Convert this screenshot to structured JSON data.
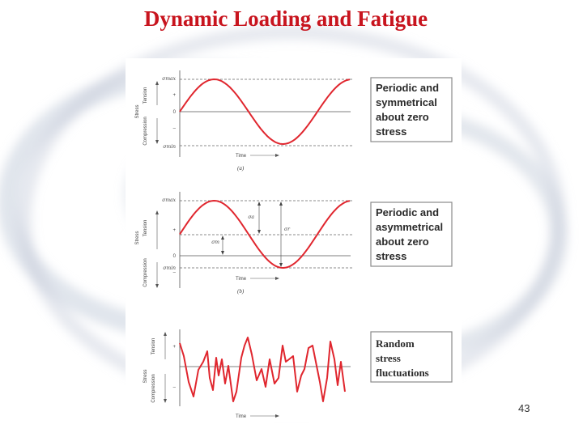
{
  "slide": {
    "title": "Dynamic Loading and Fatigue",
    "page_number": "43"
  },
  "panels": [
    {
      "id": "a",
      "caption": "(a)",
      "description_lines": [
        "Periodic and",
        "symmetrical",
        "about zero",
        "stress"
      ],
      "labels": {
        "stress": "Stress",
        "tension": "Tension",
        "compression": "Compression",
        "plus": "+",
        "minus": "–",
        "zero": "0",
        "time": "Time",
        "sigma_max": "σmax",
        "sigma_min": "σmin"
      }
    },
    {
      "id": "b",
      "caption": "(b)",
      "description_lines": [
        "Periodic and",
        "asymmetrical",
        "about zero",
        "stress"
      ],
      "labels": {
        "stress": "Stress",
        "tension": "Tension",
        "compression": "Compression",
        "plus": "+",
        "minus": "–",
        "zero": "0",
        "time": "Time",
        "sigma_max": "σmax",
        "sigma_min": "σmin",
        "sigma_a": "σa",
        "sigma_r": "σr",
        "sigma_m": "σm"
      }
    },
    {
      "id": "c",
      "caption": "",
      "description_lines": [
        "Random",
        "stress",
        "fluctuations"
      ],
      "labels": {
        "stress": "Stress",
        "tension": "Tension",
        "compression": "Compression",
        "plus": "+",
        "minus": "–",
        "time": "Time"
      }
    }
  ],
  "colors": {
    "title": "#c8141e",
    "curve": "#e0262e",
    "text": "#2a2a2a",
    "axis": "#555555"
  }
}
